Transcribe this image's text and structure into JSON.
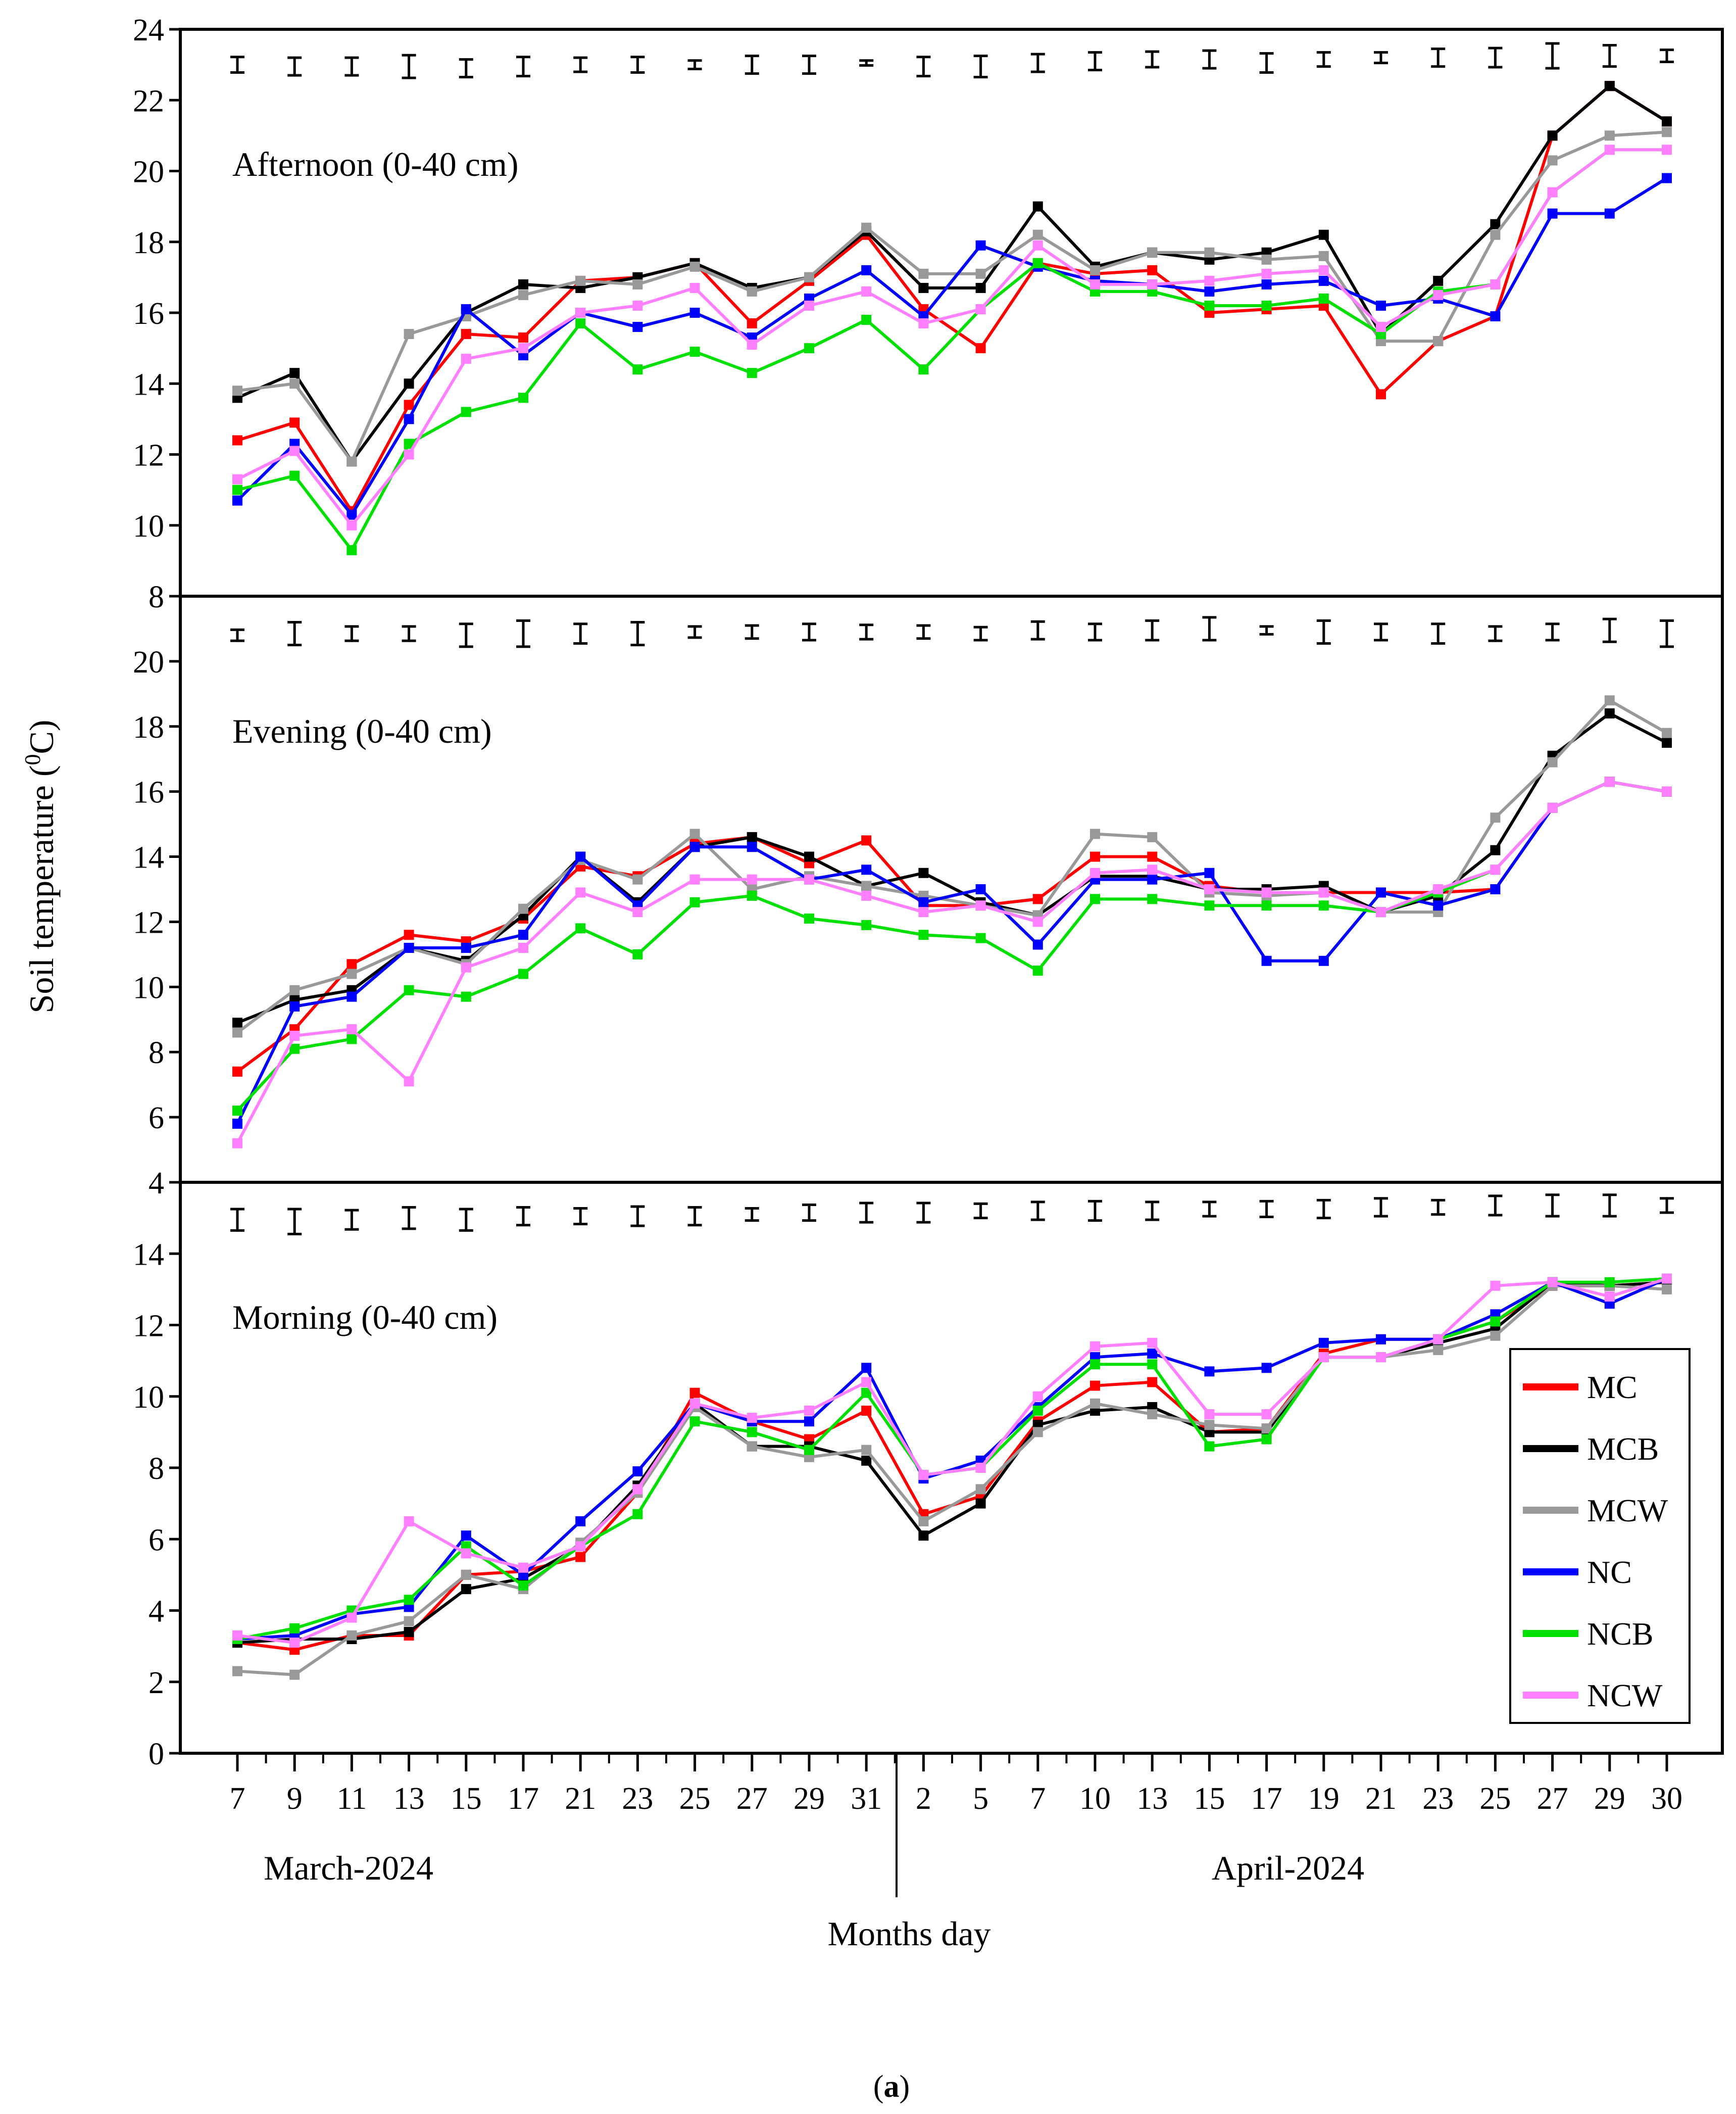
{
  "figure": {
    "ylabel": "Soil temperature (",
    "ylabel_sup": "0",
    "ylabel_tail": "C)",
    "xlabel": "Months day",
    "caption_open": "(",
    "caption_letter": "a",
    "caption_close": ")"
  },
  "chart_data": {
    "type": "line",
    "x_ticks": [
      "7",
      "9",
      "11",
      "13",
      "15",
      "17",
      "21",
      "23",
      "25",
      "27",
      "29",
      "31",
      "2",
      "5",
      "7",
      "10",
      "13",
      "15",
      "17",
      "19",
      "21",
      "23",
      "25",
      "27",
      "29",
      "30"
    ],
    "months": [
      {
        "label": "March-2024"
      },
      {
        "label": "April-2024"
      }
    ],
    "legend": {
      "position": "lower-right of morning panel",
      "entries": [
        {
          "name": "MC",
          "color": "#ff0000"
        },
        {
          "name": "MCB",
          "color": "#000000"
        },
        {
          "name": "MCW",
          "color": "#999999"
        },
        {
          "name": "NC",
          "color": "#0000ff"
        },
        {
          "name": "NCB",
          "color": "#00e000"
        },
        {
          "name": "NCW",
          "color": "#ff80ff"
        }
      ]
    },
    "panels": [
      {
        "title": "Afternoon (0-40 cm)",
        "ylim": [
          8,
          24
        ],
        "yticks": [
          8,
          10,
          12,
          14,
          16,
          18,
          20,
          22,
          24
        ],
        "error_bars": [
          {
            "c": 23.0,
            "h": 0.22
          },
          {
            "c": 22.95,
            "h": 0.25
          },
          {
            "c": 22.95,
            "h": 0.25
          },
          {
            "c": 22.95,
            "h": 0.32
          },
          {
            "c": 22.9,
            "h": 0.25
          },
          {
            "c": 22.95,
            "h": 0.27
          },
          {
            "c": 23.0,
            "h": 0.2
          },
          {
            "c": 23.0,
            "h": 0.22
          },
          {
            "c": 23.0,
            "h": 0.12
          },
          {
            "c": 23.0,
            "h": 0.25
          },
          {
            "c": 23.0,
            "h": 0.25
          },
          {
            "c": 23.05,
            "h": 0.07
          },
          {
            "c": 22.95,
            "h": 0.27
          },
          {
            "c": 22.95,
            "h": 0.3
          },
          {
            "c": 23.05,
            "h": 0.25
          },
          {
            "c": 23.1,
            "h": 0.25
          },
          {
            "c": 23.15,
            "h": 0.22
          },
          {
            "c": 23.15,
            "h": 0.25
          },
          {
            "c": 23.05,
            "h": 0.27
          },
          {
            "c": 23.15,
            "h": 0.2
          },
          {
            "c": 23.2,
            "h": 0.15
          },
          {
            "c": 23.2,
            "h": 0.25
          },
          {
            "c": 23.2,
            "h": 0.27
          },
          {
            "c": 23.25,
            "h": 0.35
          },
          {
            "c": 23.25,
            "h": 0.3
          },
          {
            "c": 23.25,
            "h": 0.17
          }
        ],
        "series": [
          {
            "name": "MC",
            "color": "#ff0000",
            "values": [
              12.4,
              12.9,
              10.4,
              13.4,
              15.4,
              15.3,
              16.9,
              17.0,
              17.4,
              15.7,
              16.9,
              18.2,
              16.1,
              15.0,
              17.4,
              17.1,
              17.2,
              16.0,
              16.1,
              16.2,
              13.7,
              15.2,
              15.9,
              21.0,
              22.4,
              21.4
            ]
          },
          {
            "name": "MCB",
            "color": "#000000",
            "values": [
              13.6,
              14.3,
              11.8,
              14.0,
              16.0,
              16.8,
              16.7,
              17.0,
              17.4,
              16.7,
              17.0,
              18.3,
              16.7,
              16.7,
              19.0,
              17.3,
              17.7,
              17.5,
              17.7,
              18.2,
              15.4,
              16.9,
              18.5,
              21.0,
              22.4,
              21.4
            ]
          },
          {
            "name": "MCW",
            "color": "#999999",
            "values": [
              13.8,
              14.0,
              11.8,
              15.4,
              15.9,
              16.5,
              16.9,
              16.8,
              17.3,
              16.6,
              17.0,
              18.4,
              17.1,
              17.1,
              18.2,
              17.2,
              17.7,
              17.7,
              17.5,
              17.6,
              15.2,
              15.2,
              18.2,
              20.3,
              21.0,
              21.1
            ]
          },
          {
            "name": "NC",
            "color": "#0000ff",
            "values": [
              10.7,
              12.3,
              10.3,
              13.0,
              16.1,
              14.8,
              16.0,
              15.6,
              16.0,
              15.3,
              16.4,
              17.2,
              15.9,
              17.9,
              17.3,
              16.9,
              16.8,
              16.6,
              16.8,
              16.9,
              16.2,
              16.4,
              15.9,
              18.8,
              18.8,
              19.8
            ]
          },
          {
            "name": "NCB",
            "color": "#00e000",
            "values": [
              11.0,
              11.4,
              9.3,
              12.3,
              13.2,
              13.6,
              15.7,
              14.4,
              14.9,
              14.3,
              15.0,
              15.8,
              14.4,
              16.1,
              17.4,
              16.6,
              16.6,
              16.2,
              16.2,
              16.4,
              15.4,
              16.6,
              16.8,
              19.4,
              20.6,
              20.6
            ]
          },
          {
            "name": "NCW",
            "color": "#ff80ff",
            "values": [
              11.3,
              12.1,
              10.0,
              12.0,
              14.7,
              15.0,
              16.0,
              16.2,
              16.7,
              15.1,
              16.2,
              16.6,
              15.7,
              16.1,
              17.9,
              16.8,
              16.8,
              16.9,
              17.1,
              17.2,
              15.6,
              16.5,
              16.8,
              19.4,
              20.6,
              20.6
            ]
          }
        ]
      },
      {
        "title": "Evening (0-40 cm)",
        "ylim": [
          4,
          22
        ],
        "yticks": [
          4,
          6,
          8,
          10,
          12,
          14,
          16,
          18,
          20
        ],
        "error_bars": [
          {
            "c": 20.8,
            "h": 0.17
          },
          {
            "c": 20.85,
            "h": 0.35
          },
          {
            "c": 20.85,
            "h": 0.22
          },
          {
            "c": 20.85,
            "h": 0.22
          },
          {
            "c": 20.8,
            "h": 0.35
          },
          {
            "c": 20.85,
            "h": 0.4
          },
          {
            "c": 20.85,
            "h": 0.3
          },
          {
            "c": 20.85,
            "h": 0.35
          },
          {
            "c": 20.9,
            "h": 0.17
          },
          {
            "c": 20.9,
            "h": 0.2
          },
          {
            "c": 20.9,
            "h": 0.25
          },
          {
            "c": 20.9,
            "h": 0.22
          },
          {
            "c": 20.9,
            "h": 0.2
          },
          {
            "c": 20.85,
            "h": 0.2
          },
          {
            "c": 20.95,
            "h": 0.27
          },
          {
            "c": 20.9,
            "h": 0.25
          },
          {
            "c": 20.95,
            "h": 0.3
          },
          {
            "c": 21.0,
            "h": 0.35
          },
          {
            "c": 20.95,
            "h": 0.12
          },
          {
            "c": 20.9,
            "h": 0.35
          },
          {
            "c": 20.9,
            "h": 0.25
          },
          {
            "c": 20.85,
            "h": 0.3
          },
          {
            "c": 20.85,
            "h": 0.22
          },
          {
            "c": 20.9,
            "h": 0.25
          },
          {
            "c": 20.95,
            "h": 0.35
          },
          {
            "c": 20.85,
            "h": 0.4
          }
        ],
        "series": [
          {
            "name": "MC",
            "color": "#ff0000",
            "values": [
              7.4,
              8.7,
              10.7,
              11.6,
              11.4,
              12.1,
              13.7,
              13.4,
              14.4,
              14.6,
              13.8,
              14.5,
              12.5,
              12.5,
              12.7,
              14.0,
              14.0,
              13.1,
              12.9,
              12.9,
              12.9,
              12.9,
              13.0,
              15.5,
              16.3,
              16.0
            ]
          },
          {
            "name": "MCB",
            "color": "#000000",
            "values": [
              8.9,
              9.6,
              9.9,
              11.2,
              10.8,
              12.2,
              14.0,
              12.6,
              14.3,
              14.6,
              14.0,
              13.1,
              13.5,
              12.6,
              12.2,
              13.4,
              13.4,
              13.0,
              13.0,
              13.1,
              12.3,
              12.8,
              14.2,
              17.1,
              18.4,
              17.5
            ]
          },
          {
            "name": "MCW",
            "color": "#999999",
            "values": [
              8.6,
              9.9,
              10.4,
              11.2,
              10.7,
              12.4,
              13.9,
              13.3,
              14.7,
              13.0,
              13.4,
              13.1,
              12.8,
              12.5,
              12.2,
              14.7,
              14.6,
              12.9,
              12.8,
              12.9,
              12.3,
              12.3,
              15.2,
              16.9,
              18.8,
              17.8
            ]
          },
          {
            "name": "NC",
            "color": "#0000ff",
            "values": [
              5.8,
              9.4,
              9.7,
              11.2,
              11.2,
              11.6,
              14.0,
              12.5,
              14.3,
              14.3,
              13.3,
              13.6,
              12.6,
              13.0,
              11.3,
              13.3,
              13.3,
              13.5,
              10.8,
              10.8,
              12.9,
              12.5,
              13.0,
              15.5,
              16.3,
              16.0
            ]
          },
          {
            "name": "NCB",
            "color": "#00e000",
            "values": [
              6.2,
              8.1,
              8.4,
              9.9,
              9.7,
              10.4,
              11.8,
              11.0,
              12.6,
              12.8,
              12.1,
              11.9,
              11.6,
              11.5,
              10.5,
              12.7,
              12.7,
              12.5,
              12.5,
              12.5,
              12.3,
              12.9,
              13.6,
              15.5,
              16.3,
              16.0
            ]
          },
          {
            "name": "NCW",
            "color": "#ff80ff",
            "values": [
              5.2,
              8.5,
              8.7,
              7.1,
              10.6,
              11.2,
              12.9,
              12.3,
              13.3,
              13.3,
              13.3,
              12.8,
              12.3,
              12.5,
              12.0,
              13.5,
              13.6,
              13.0,
              12.9,
              12.9,
              12.3,
              13.0,
              13.6,
              15.5,
              16.3,
              16.0
            ]
          }
        ]
      },
      {
        "title": "Morning (0-40 cm)",
        "ylim": [
          0,
          16
        ],
        "yticks": [
          0,
          2,
          4,
          6,
          8,
          10,
          12,
          14
        ],
        "error_bars": [
          {
            "c": 14.95,
            "h": 0.3
          },
          {
            "c": 14.9,
            "h": 0.35
          },
          {
            "c": 14.95,
            "h": 0.27
          },
          {
            "c": 15.0,
            "h": 0.3
          },
          {
            "c": 14.95,
            "h": 0.3
          },
          {
            "c": 15.05,
            "h": 0.25
          },
          {
            "c": 15.05,
            "h": 0.22
          },
          {
            "c": 15.05,
            "h": 0.27
          },
          {
            "c": 15.05,
            "h": 0.25
          },
          {
            "c": 15.1,
            "h": 0.17
          },
          {
            "c": 15.15,
            "h": 0.22
          },
          {
            "c": 15.15,
            "h": 0.27
          },
          {
            "c": 15.15,
            "h": 0.27
          },
          {
            "c": 15.2,
            "h": 0.2
          },
          {
            "c": 15.2,
            "h": 0.25
          },
          {
            "c": 15.2,
            "h": 0.27
          },
          {
            "c": 15.2,
            "h": 0.25
          },
          {
            "c": 15.25,
            "h": 0.2
          },
          {
            "c": 15.25,
            "h": 0.22
          },
          {
            "c": 15.25,
            "h": 0.25
          },
          {
            "c": 15.3,
            "h": 0.25
          },
          {
            "c": 15.3,
            "h": 0.2
          },
          {
            "c": 15.35,
            "h": 0.27
          },
          {
            "c": 15.35,
            "h": 0.3
          },
          {
            "c": 15.35,
            "h": 0.3
          },
          {
            "c": 15.35,
            "h": 0.2
          }
        ],
        "series": [
          {
            "name": "MC",
            "color": "#ff0000",
            "values": [
              3.1,
              2.9,
              3.3,
              3.3,
              5.0,
              5.1,
              5.5,
              7.3,
              10.1,
              9.3,
              8.8,
              9.6,
              6.7,
              7.2,
              9.3,
              10.3,
              10.4,
              9.0,
              9.1,
              11.2,
              11.6,
              11.6,
              12.1,
              13.1,
              13.1,
              13.2
            ]
          },
          {
            "name": "MCB",
            "color": "#000000",
            "values": [
              3.1,
              3.2,
              3.2,
              3.4,
              4.6,
              4.9,
              5.8,
              7.5,
              9.8,
              8.6,
              8.6,
              8.2,
              6.1,
              7.0,
              9.2,
              9.6,
              9.7,
              9.0,
              9.0,
              11.1,
              11.1,
              11.5,
              11.9,
              13.2,
              13.1,
              13.2
            ]
          },
          {
            "name": "MCW",
            "color": "#999999",
            "values": [
              2.3,
              2.2,
              3.3,
              3.7,
              5.0,
              4.6,
              5.9,
              7.3,
              9.7,
              8.6,
              8.3,
              8.5,
              6.5,
              7.4,
              9.0,
              9.8,
              9.5,
              9.2,
              9.1,
              11.1,
              11.1,
              11.3,
              11.7,
              13.1,
              13.1,
              13.0
            ]
          },
          {
            "name": "NC",
            "color": "#0000ff",
            "values": [
              3.2,
              3.3,
              3.9,
              4.1,
              6.1,
              5.0,
              6.5,
              7.9,
              9.8,
              9.3,
              9.3,
              10.8,
              7.7,
              8.2,
              9.7,
              11.1,
              11.2,
              10.7,
              10.8,
              11.5,
              11.6,
              11.6,
              12.3,
              13.2,
              12.6,
              13.3
            ]
          },
          {
            "name": "NCB",
            "color": "#00e000",
            "values": [
              3.2,
              3.5,
              4.0,
              4.3,
              5.8,
              4.7,
              5.8,
              6.7,
              9.3,
              9.0,
              8.5,
              10.1,
              7.8,
              8.0,
              9.6,
              10.9,
              10.9,
              8.6,
              8.8,
              11.1,
              11.1,
              11.6,
              12.1,
              13.2,
              13.2,
              13.3
            ]
          },
          {
            "name": "NCW",
            "color": "#ff80ff",
            "values": [
              3.3,
              3.1,
              3.8,
              6.5,
              5.6,
              5.2,
              5.8,
              7.4,
              9.8,
              9.4,
              9.6,
              10.4,
              7.8,
              8.0,
              10.0,
              11.4,
              11.5,
              9.5,
              9.5,
              11.1,
              11.1,
              11.6,
              13.1,
              13.2,
              12.8,
              13.3
            ]
          }
        ]
      }
    ]
  }
}
